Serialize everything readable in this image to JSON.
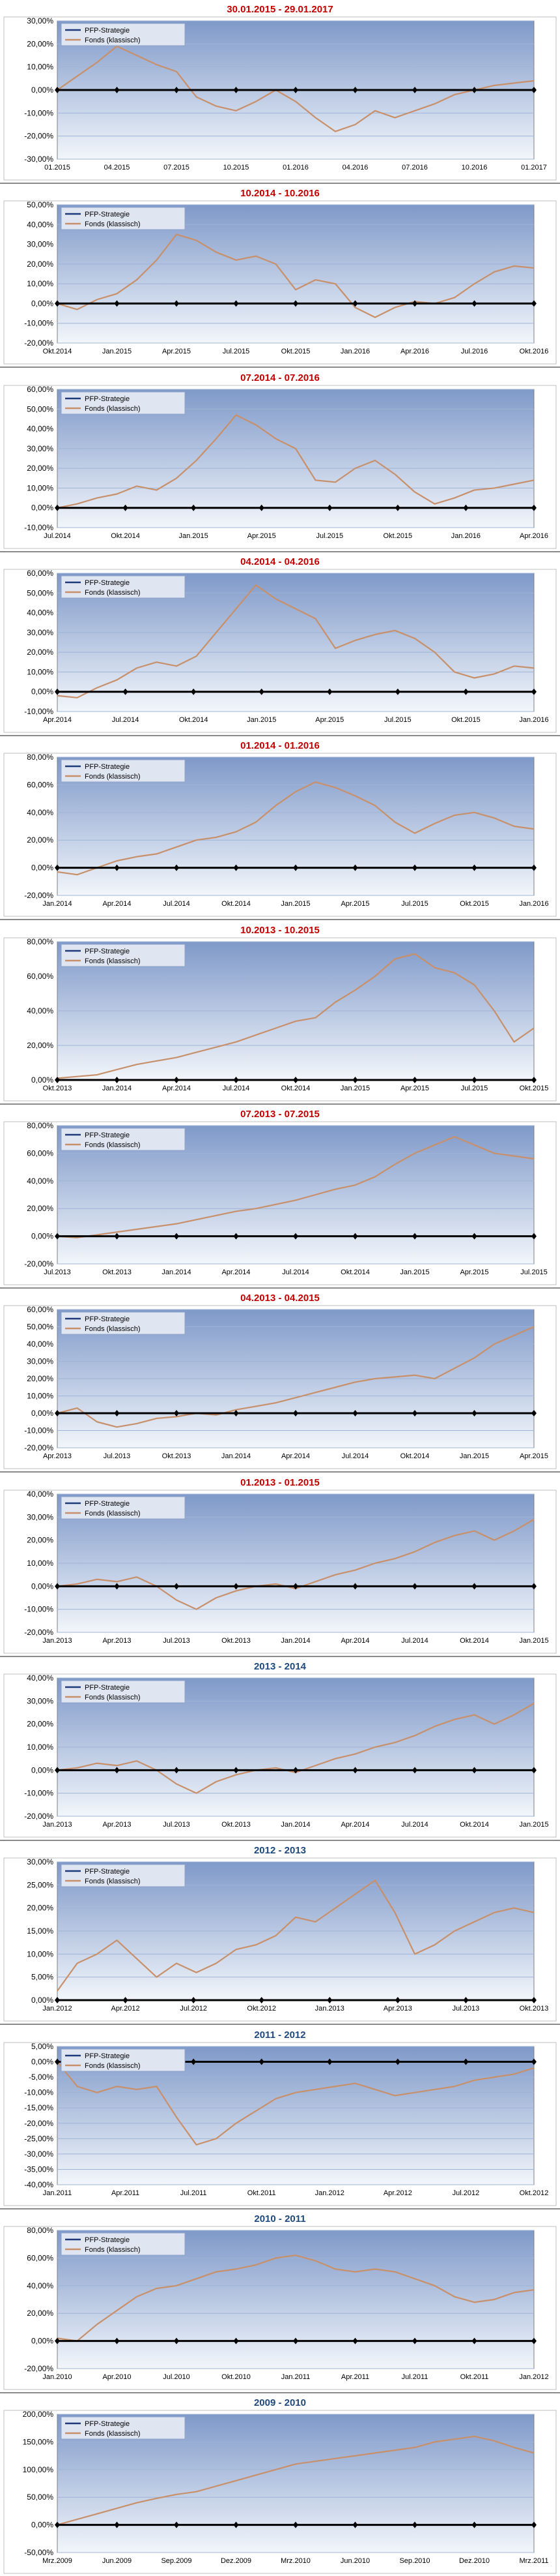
{
  "legend": {
    "strategy": "PFP-Strategie",
    "fund": "Fonds (klassisch)"
  },
  "colors": {
    "title_red": "#c00000",
    "title_blue": "#1f497d",
    "strategy_line": "#1f3a78",
    "fund_line": "#c8906a",
    "plot_top": "#7f99c9",
    "plot_bottom": "#f2f6fb"
  },
  "chart_data": [
    {
      "type": "line",
      "title": "30.01.2015 - 29.01.2017",
      "title_color": "red",
      "ylim": [
        -30,
        30
      ],
      "ystep": 10,
      "x_ticks": [
        "01.2015",
        "04.2015",
        "07.2015",
        "10.2015",
        "01.2016",
        "04.2016",
        "07.2016",
        "10.2016",
        "01.2017"
      ],
      "series": [
        {
          "name": "PFP-Strategie",
          "values": [
            0,
            0,
            0,
            0,
            0,
            0,
            0,
            0,
            0,
            0,
            0,
            0,
            0,
            0,
            0,
            0,
            0,
            0,
            0,
            0,
            0,
            0,
            0,
            0,
            0
          ]
        },
        {
          "name": "Fonds (klassisch)",
          "values": [
            0,
            6,
            12,
            19,
            15,
            11,
            8,
            -3,
            -7,
            -9,
            -5,
            0,
            -5,
            -12,
            -18,
            -15,
            -9,
            -12,
            -9,
            -6,
            -2,
            0,
            2,
            3,
            4
          ]
        }
      ]
    },
    {
      "type": "line",
      "title": "10.2014 - 10.2016",
      "title_color": "red",
      "ylim": [
        -20,
        50
      ],
      "ystep": 10,
      "x_ticks": [
        "Okt.2014",
        "Jan.2015",
        "Apr.2015",
        "Jul.2015",
        "Okt.2015",
        "Jan.2016",
        "Apr.2016",
        "Jul.2016",
        "Okt.2016"
      ],
      "series": [
        {
          "name": "PFP-Strategie",
          "values": [
            0,
            0,
            0,
            0,
            0,
            0,
            0,
            0,
            0,
            0,
            0,
            0,
            0,
            0,
            0,
            0,
            0,
            0,
            0,
            0,
            0,
            0,
            0,
            0,
            0
          ]
        },
        {
          "name": "Fonds (klassisch)",
          "values": [
            0,
            -3,
            2,
            5,
            12,
            22,
            35,
            32,
            26,
            22,
            24,
            20,
            7,
            12,
            10,
            -2,
            -7,
            -2,
            1,
            0,
            3,
            10,
            16,
            19,
            18
          ]
        }
      ]
    },
    {
      "type": "line",
      "title": "07.2014 - 07.2016",
      "title_color": "red",
      "ylim": [
        -10,
        60
      ],
      "ystep": 10,
      "x_ticks": [
        "Jul.2014",
        "Okt.2014",
        "Jan.2015",
        "Apr.2015",
        "Jul.2015",
        "Okt.2015",
        "Jan.2016",
        "Apr.2016"
      ],
      "series": [
        {
          "name": "PFP-Strategie",
          "values": [
            0,
            0,
            0,
            0,
            0,
            0,
            0,
            0,
            0,
            0,
            0,
            0,
            0,
            0,
            0,
            0,
            0,
            0,
            0,
            0,
            0,
            0,
            0,
            0,
            0
          ]
        },
        {
          "name": "Fonds (klassisch)",
          "values": [
            0,
            2,
            5,
            7,
            11,
            9,
            15,
            24,
            35,
            47,
            42,
            35,
            30,
            14,
            13,
            20,
            24,
            17,
            8,
            2,
            5,
            9,
            10,
            12,
            14
          ]
        }
      ]
    },
    {
      "type": "line",
      "title": "04.2014 - 04.2016",
      "title_color": "red",
      "ylim": [
        -10,
        60
      ],
      "ystep": 10,
      "x_ticks": [
        "Apr.2014",
        "Jul.2014",
        "Okt.2014",
        "Jan.2015",
        "Apr.2015",
        "Jul.2015",
        "Okt.2015",
        "Jan.2016"
      ],
      "series": [
        {
          "name": "PFP-Strategie",
          "values": [
            0,
            0,
            0,
            0,
            0,
            0,
            0,
            0,
            0,
            0,
            0,
            0,
            0,
            0,
            0,
            0,
            0,
            0,
            0,
            0,
            0,
            0,
            0,
            0,
            0
          ]
        },
        {
          "name": "Fonds (klassisch)",
          "values": [
            -2,
            -3,
            2,
            6,
            12,
            15,
            13,
            18,
            30,
            42,
            54,
            47,
            42,
            37,
            22,
            26,
            29,
            31,
            27,
            20,
            10,
            7,
            9,
            13,
            12
          ]
        }
      ]
    },
    {
      "type": "line",
      "title": "01.2014 - 01.2016",
      "title_color": "red",
      "ylim": [
        -20,
        80
      ],
      "ystep": 20,
      "x_ticks": [
        "Jan.2014",
        "Apr.2014",
        "Jul.2014",
        "Okt.2014",
        "Jan.2015",
        "Apr.2015",
        "Jul.2015",
        "Okt.2015",
        "Jan.2016"
      ],
      "series": [
        {
          "name": "PFP-Strategie",
          "values": [
            0,
            0,
            0,
            0,
            0,
            0,
            0,
            0,
            0,
            0,
            0,
            0,
            0,
            0,
            0,
            0,
            0,
            0,
            0,
            0,
            0,
            0,
            0,
            0,
            0
          ]
        },
        {
          "name": "Fonds (klassisch)",
          "values": [
            -3,
            -5,
            0,
            5,
            8,
            10,
            15,
            20,
            22,
            26,
            33,
            45,
            55,
            62,
            58,
            52,
            45,
            33,
            25,
            32,
            38,
            40,
            36,
            30,
            28
          ]
        }
      ]
    },
    {
      "type": "line",
      "title": "10.2013 - 10.2015",
      "title_color": "red",
      "ylim": [
        0,
        80
      ],
      "ystep": 20,
      "x_ticks": [
        "Okt.2013",
        "Jan.2014",
        "Apr.2014",
        "Jul.2014",
        "Okt.2014",
        "Jan.2015",
        "Apr.2015",
        "Jul.2015",
        "Okt.2015"
      ],
      "series": [
        {
          "name": "PFP-Strategie",
          "values": [
            0,
            0,
            0,
            0,
            0,
            0,
            0,
            0,
            0,
            0,
            0,
            0,
            0,
            0,
            0,
            0,
            0,
            0,
            0,
            0,
            0,
            0,
            0,
            0,
            0
          ]
        },
        {
          "name": "Fonds (klassisch)",
          "values": [
            1,
            2,
            3,
            6,
            9,
            11,
            13,
            16,
            19,
            22,
            26,
            30,
            34,
            36,
            45,
            52,
            60,
            70,
            73,
            65,
            62,
            55,
            40,
            22,
            30
          ]
        }
      ]
    },
    {
      "type": "line",
      "title": "07.2013 - 07.2015",
      "title_color": "red",
      "ylim": [
        -20,
        80
      ],
      "ystep": 20,
      "x_ticks": [
        "Jul.2013",
        "Okt.2013",
        "Jan.2014",
        "Apr.2014",
        "Jul.2014",
        "Okt.2014",
        "Jan.2015",
        "Apr.2015",
        "Jul.2015"
      ],
      "series": [
        {
          "name": "PFP-Strategie",
          "values": [
            0,
            0,
            0,
            0,
            0,
            0,
            0,
            0,
            0,
            0,
            0,
            0,
            0,
            0,
            0,
            0,
            0,
            0,
            0,
            0,
            0,
            0,
            0,
            0,
            0
          ]
        },
        {
          "name": "Fonds (klassisch)",
          "values": [
            0,
            -1,
            1,
            3,
            5,
            7,
            9,
            12,
            15,
            18,
            20,
            23,
            26,
            30,
            34,
            37,
            43,
            52,
            60,
            66,
            72,
            66,
            60,
            58,
            56
          ]
        }
      ]
    },
    {
      "type": "line",
      "title": "04.2013 - 04.2015",
      "title_color": "red",
      "ylim": [
        -20,
        60
      ],
      "ystep": 10,
      "x_ticks": [
        "Apr.2013",
        "Jul.2013",
        "Okt.2013",
        "Jan.2014",
        "Apr.2014",
        "Jul.2014",
        "Okt.2014",
        "Jan.2015",
        "Apr.2015"
      ],
      "series": [
        {
          "name": "PFP-Strategie",
          "values": [
            0,
            0,
            0,
            0,
            0,
            0,
            0,
            0,
            0,
            0,
            0,
            0,
            0,
            0,
            0,
            0,
            0,
            0,
            0,
            0,
            0,
            0,
            0,
            0,
            0
          ]
        },
        {
          "name": "Fonds (klassisch)",
          "values": [
            0,
            3,
            -5,
            -8,
            -6,
            -3,
            -2,
            0,
            -1,
            2,
            4,
            6,
            9,
            12,
            15,
            18,
            20,
            21,
            22,
            20,
            26,
            32,
            40,
            45,
            50
          ]
        }
      ]
    },
    {
      "type": "line",
      "title": "01.2013 - 01.2015",
      "title_color": "red",
      "ylim": [
        -20,
        40
      ],
      "ystep": 10,
      "x_ticks": [
        "Jan.2013",
        "Apr.2013",
        "Jul.2013",
        "Okt.2013",
        "Jan.2014",
        "Apr.2014",
        "Jul.2014",
        "Okt.2014",
        "Jan.2015"
      ],
      "series": [
        {
          "name": "PFP-Strategie",
          "values": [
            0,
            0,
            0,
            0,
            0,
            0,
            0,
            0,
            0,
            0,
            0,
            0,
            0,
            0,
            0,
            0,
            0,
            0,
            0,
            0,
            0,
            0,
            0,
            0,
            0
          ]
        },
        {
          "name": "Fonds (klassisch)",
          "values": [
            0,
            1,
            3,
            2,
            4,
            0,
            -6,
            -10,
            -5,
            -2,
            0,
            1,
            -1,
            2,
            5,
            7,
            10,
            12,
            15,
            19,
            22,
            24,
            20,
            24,
            29
          ]
        }
      ]
    },
    {
      "type": "line",
      "title": "2013 - 2014",
      "title_color": "blue",
      "ylim": [
        -20,
        40
      ],
      "ystep": 10,
      "x_ticks": [
        "Jan.2013",
        "Apr.2013",
        "Jul.2013",
        "Okt.2013",
        "Jan.2014",
        "Apr.2014",
        "Jul.2014",
        "Okt.2014",
        "Jan.2015"
      ],
      "series": [
        {
          "name": "PFP-Strategie",
          "values": [
            0,
            0,
            0,
            0,
            0,
            0,
            0,
            0,
            0,
            0,
            0,
            0,
            0,
            0,
            0,
            0,
            0,
            0,
            0,
            0,
            0,
            0,
            0,
            0,
            0
          ]
        },
        {
          "name": "Fonds (klassisch)",
          "values": [
            0,
            1,
            3,
            2,
            4,
            0,
            -6,
            -10,
            -5,
            -2,
            0,
            1,
            -1,
            2,
            5,
            7,
            10,
            12,
            15,
            19,
            22,
            24,
            20,
            24,
            29
          ]
        }
      ]
    },
    {
      "type": "line",
      "title": "2012 - 2013",
      "title_color": "blue",
      "ylim": [
        0,
        30
      ],
      "ystep": 5,
      "x_ticks": [
        "Jan.2012",
        "Apr.2012",
        "Jul.2012",
        "Okt.2012",
        "Jan.2013",
        "Apr.2013",
        "Jul.2013",
        "Okt.2013"
      ],
      "series": [
        {
          "name": "PFP-Strategie",
          "values": [
            0,
            0,
            0,
            0,
            0,
            0,
            0,
            0,
            0,
            0,
            0,
            0,
            0,
            0,
            0,
            0,
            0,
            0,
            0,
            0,
            0,
            0,
            0,
            0,
            0
          ]
        },
        {
          "name": "Fonds (klassisch)",
          "values": [
            2,
            8,
            10,
            13,
            9,
            5,
            8,
            6,
            8,
            11,
            12,
            14,
            18,
            17,
            20,
            23,
            26,
            19,
            10,
            12,
            15,
            17,
            19,
            20,
            19
          ]
        }
      ]
    },
    {
      "type": "line",
      "title": "2011 - 2012",
      "title_color": "blue",
      "ylim": [
        -40,
        5
      ],
      "ystep": 5,
      "x_ticks": [
        "Jan.2011",
        "Apr.2011",
        "Jul.2011",
        "Okt.2011",
        "Jan.2012",
        "Apr.2012",
        "Jul.2012",
        "Okt.2012"
      ],
      "series": [
        {
          "name": "PFP-Strategie",
          "values": [
            0,
            0,
            0,
            0,
            0,
            0,
            0,
            0,
            0,
            0,
            0,
            0,
            0,
            0,
            0,
            0,
            0,
            0,
            0,
            0,
            0,
            0,
            0,
            0,
            0
          ]
        },
        {
          "name": "Fonds (klassisch)",
          "values": [
            0,
            -8,
            -10,
            -8,
            -9,
            -8,
            -18,
            -27,
            -25,
            -20,
            -16,
            -12,
            -10,
            -9,
            -8,
            -7,
            -9,
            -11,
            -10,
            -9,
            -8,
            -6,
            -5,
            -4,
            -2
          ]
        }
      ]
    },
    {
      "type": "line",
      "title": "2010 - 2011",
      "title_color": "blue",
      "ylim": [
        -20,
        80
      ],
      "ystep": 20,
      "x_ticks": [
        "Jan.2010",
        "Apr.2010",
        "Jul.2010",
        "Okt.2010",
        "Jan.2011",
        "Apr.2011",
        "Jul.2011",
        "Okt.2011",
        "Jan.2012"
      ],
      "series": [
        {
          "name": "PFP-Strategie",
          "values": [
            0,
            0,
            0,
            0,
            0,
            0,
            0,
            0,
            0,
            0,
            0,
            0,
            0,
            0,
            0,
            0,
            0,
            0,
            0,
            0,
            0,
            0,
            0,
            0,
            0
          ]
        },
        {
          "name": "Fonds (klassisch)",
          "values": [
            2,
            0,
            12,
            22,
            32,
            38,
            40,
            45,
            50,
            52,
            55,
            60,
            62,
            58,
            52,
            50,
            52,
            50,
            45,
            40,
            32,
            28,
            30,
            35,
            37
          ]
        }
      ]
    },
    {
      "type": "line",
      "title": "2009 - 2010",
      "title_color": "blue",
      "ylim": [
        -50,
        200
      ],
      "ystep": 50,
      "x_ticks": [
        "Mrz.2009",
        "Jun.2009",
        "Sep.2009",
        "Dez.2009",
        "Mrz.2010",
        "Jun.2010",
        "Sep.2010",
        "Dez.2010",
        "Mrz.2011"
      ],
      "series": [
        {
          "name": "PFP-Strategie",
          "values": [
            0,
            0,
            0,
            0,
            0,
            0,
            0,
            0,
            0,
            0,
            0,
            0,
            0,
            0,
            0,
            0,
            0,
            0,
            0,
            0,
            0,
            0,
            0,
            0,
            0
          ]
        },
        {
          "name": "Fonds (klassisch)",
          "values": [
            0,
            10,
            20,
            30,
            40,
            48,
            55,
            60,
            70,
            80,
            90,
            100,
            110,
            115,
            120,
            125,
            130,
            135,
            140,
            150,
            155,
            160,
            152,
            140,
            130
          ]
        }
      ]
    }
  ]
}
